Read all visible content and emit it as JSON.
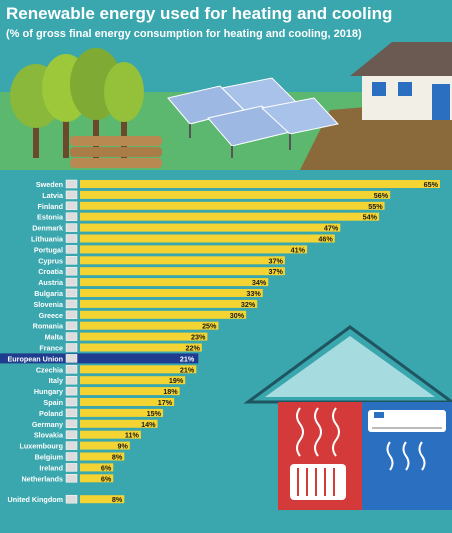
{
  "title": "Renewable energy used for heating and cooling",
  "subtitle": "(% of gross final energy consumption for heating and cooling, 2018)",
  "colors": {
    "background": "#3aa6ad",
    "bar": "#f3d432",
    "eu_highlight": "#1f3c8f",
    "label_text": "#ffffff",
    "value_text": "#1a1a1a"
  },
  "chart_data": {
    "type": "bar",
    "orientation": "horizontal",
    "categories": [
      "Sweden",
      "Latvia",
      "Finland",
      "Estonia",
      "Denmark",
      "Lithuania",
      "Portugal",
      "Cyprus",
      "Croatia",
      "Austria",
      "Bulgaria",
      "Slovenia",
      "Greece",
      "Romania",
      "Malta",
      "France",
      "European Union",
      "Czechia",
      "Italy",
      "Hungary",
      "Spain",
      "Poland",
      "Germany",
      "Slovakia",
      "Luxembourg",
      "Belgium",
      "Ireland",
      "Netherlands",
      "United Kingdom"
    ],
    "values": [
      65,
      56,
      55,
      54,
      47,
      46,
      41,
      37,
      37,
      34,
      33,
      32,
      30,
      25,
      23,
      22,
      21,
      21,
      19,
      18,
      17,
      15,
      14,
      11,
      9,
      8,
      6,
      6,
      8
    ],
    "value_labels": [
      "65%",
      "56%",
      "55%",
      "54%",
      "47%",
      "46%",
      "41%",
      "37%",
      "37%",
      "34%",
      "33%",
      "32%",
      "30%",
      "25%",
      "23%",
      "22%",
      "21%",
      "21%",
      "19%",
      "18%",
      "17%",
      "15%",
      "14%",
      "11%",
      "9%",
      "8%",
      "6%",
      "6%",
      "8%"
    ],
    "highlight": "European Union",
    "xlim": [
      0,
      65
    ],
    "grid": false,
    "legend": "none"
  }
}
